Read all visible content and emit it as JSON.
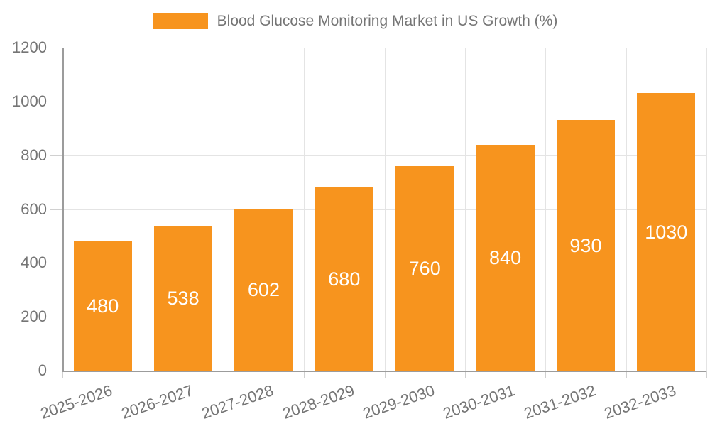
{
  "chart_data": {
    "type": "bar",
    "title": "Blood Glucose Monitoring Market in US Growth (%)",
    "legend": {
      "label": "Blood Glucose Monitoring Market in US Growth (%)",
      "position": "top-center"
    },
    "categories": [
      "2025-2026",
      "2026-2027",
      "2027-2028",
      "2028-2029",
      "2029-2030",
      "2030-2031",
      "2031-2032",
      "2032-2033"
    ],
    "values": [
      480,
      538,
      602,
      680,
      760,
      840,
      930,
      1030
    ],
    "xlabel": "",
    "ylabel": "",
    "ylim": [
      0,
      1200
    ],
    "yticks": [
      0,
      200,
      400,
      600,
      800,
      1000,
      1200
    ],
    "grid": true,
    "value_labels": "inside-center",
    "xlabel_rotation_deg": -19,
    "colors": {
      "bar": "#F7941E",
      "grid": "#E4E4E4",
      "axis": "#9C9C9C",
      "tick": "#D0D0D0",
      "text": "#757575",
      "value_text": "#FFFFFF",
      "background": "#FFFFFF"
    }
  }
}
